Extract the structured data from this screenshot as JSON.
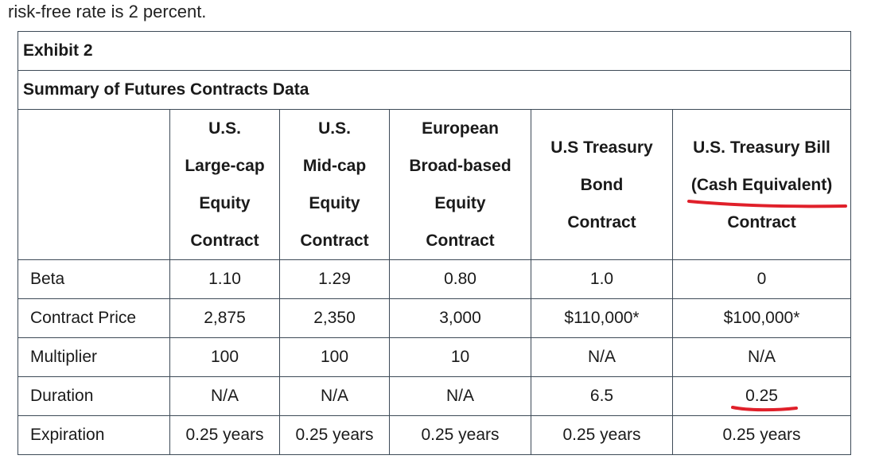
{
  "intro_text": "risk-free rate is 2 percent.",
  "exhibit": {
    "title": "Exhibit 2",
    "subtitle": "Summary of Futures Contracts Data",
    "columns": [
      {
        "lines": [
          "U.S.",
          "Large-cap",
          "Equity",
          "Contract"
        ]
      },
      {
        "lines": [
          "U.S.",
          "Mid-cap",
          "Equity",
          "Contract"
        ]
      },
      {
        "lines": [
          "European",
          "Broad-based",
          "Equity",
          "Contract"
        ]
      },
      {
        "lines": [
          "U.S Treasury",
          "Bond",
          "Contract"
        ]
      },
      {
        "lines": [
          "U.S. Treasury Bill",
          "(Cash Equivalent)",
          "Contract"
        ]
      }
    ],
    "rows": [
      {
        "label": "Beta",
        "values": [
          "1.10",
          "1.29",
          "0.80",
          "1.0",
          "0"
        ]
      },
      {
        "label": "Contract Price",
        "values": [
          "2,875",
          "2,350",
          "3,000",
          "$110,000*",
          "$100,000*"
        ]
      },
      {
        "label": "Multiplier",
        "values": [
          "100",
          "100",
          "10",
          "N/A",
          "N/A"
        ]
      },
      {
        "label": "Duration",
        "values": [
          "N/A",
          "N/A",
          "N/A",
          "6.5",
          "0.25"
        ]
      },
      {
        "label": "Expiration",
        "values": [
          "0.25 years",
          "0.25 years",
          "0.25 years",
          "0.25 years",
          "0.25 years"
        ]
      }
    ]
  },
  "annotations": {
    "color": "#e0202a"
  }
}
